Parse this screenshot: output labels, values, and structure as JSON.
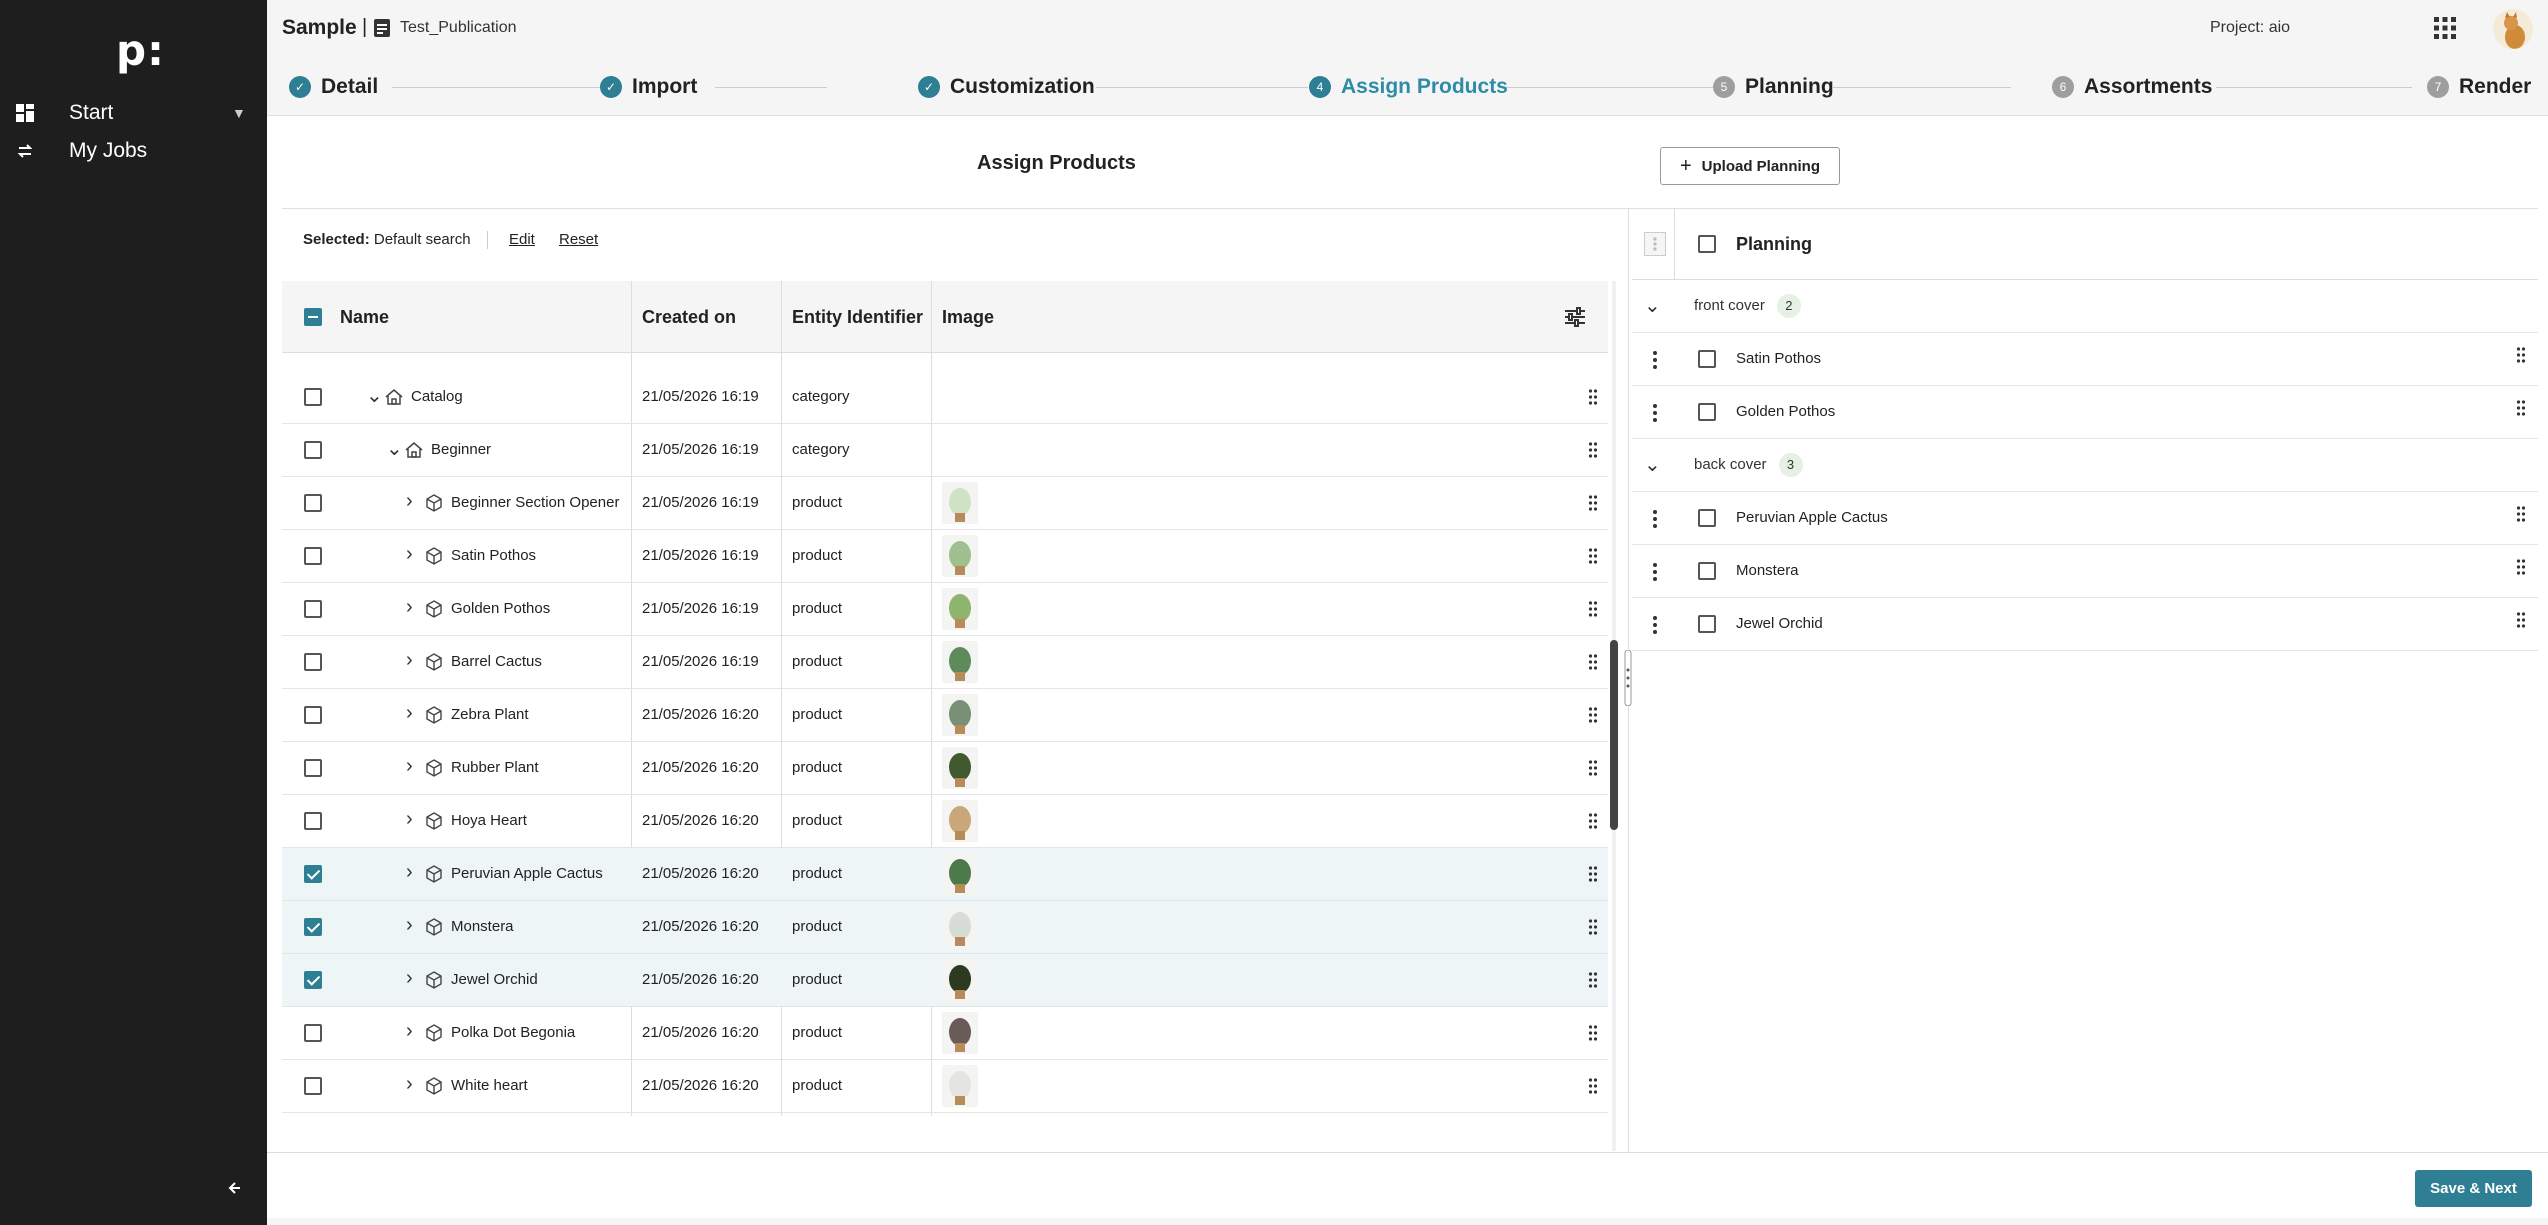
{
  "sidebar": {
    "logo": "p:",
    "items": [
      {
        "label": "Start",
        "icon": "dashboard-icon"
      },
      {
        "label": "My Jobs",
        "icon": "jobs-icon"
      }
    ]
  },
  "header": {
    "title": "Sample",
    "separator": "|",
    "publication": "Test_Publication",
    "project": "Project: aio"
  },
  "stepper": [
    {
      "num": "1",
      "label": "Detail",
      "status": "done"
    },
    {
      "num": "2",
      "label": "Import",
      "status": "done"
    },
    {
      "num": "3",
      "label": "Customization",
      "status": "done"
    },
    {
      "num": "4",
      "label": "Assign Products",
      "status": "active"
    },
    {
      "num": "5",
      "label": "Planning",
      "status": "todo"
    },
    {
      "num": "6",
      "label": "Assortments",
      "status": "todo"
    },
    {
      "num": "7",
      "label": "Render",
      "status": "todo"
    }
  ],
  "main": {
    "heading": "Assign Products",
    "upload_label": "Upload Planning",
    "selected_label": "Selected:",
    "selected_value": "Default search",
    "edit_label": "Edit",
    "reset_label": "Reset"
  },
  "grid": {
    "columns": [
      "Name",
      "Created on",
      "Entity Identifier",
      "Image"
    ],
    "rows": [
      {
        "name": "Catalog",
        "date": "21/05/2026 16:19",
        "entity": "category",
        "level": 0,
        "type": "category",
        "checked": false,
        "expanded": true,
        "img": ""
      },
      {
        "name": "Beginner",
        "date": "21/05/2026 16:19",
        "entity": "category",
        "level": 1,
        "type": "category",
        "checked": false,
        "expanded": true,
        "img": ""
      },
      {
        "name": "Beginner Section Opener",
        "date": "21/05/2026 16:19",
        "entity": "product",
        "level": 2,
        "type": "product",
        "checked": false,
        "expanded": false,
        "img": "#cfe3c4"
      },
      {
        "name": "Satin Pothos",
        "date": "21/05/2026 16:19",
        "entity": "product",
        "level": 2,
        "type": "product",
        "checked": false,
        "expanded": false,
        "img": "#9fbf8f"
      },
      {
        "name": "Golden Pothos",
        "date": "21/05/2026 16:19",
        "entity": "product",
        "level": 2,
        "type": "product",
        "checked": false,
        "expanded": false,
        "img": "#8fb46e"
      },
      {
        "name": "Barrel Cactus",
        "date": "21/05/2026 16:19",
        "entity": "product",
        "level": 2,
        "type": "product",
        "checked": false,
        "expanded": false,
        "img": "#5f8a5a"
      },
      {
        "name": "Zebra Plant",
        "date": "21/05/2026 16:20",
        "entity": "product",
        "level": 2,
        "type": "product",
        "checked": false,
        "expanded": false,
        "img": "#7a8f78"
      },
      {
        "name": "Rubber Plant",
        "date": "21/05/2026 16:20",
        "entity": "product",
        "level": 2,
        "type": "product",
        "checked": false,
        "expanded": false,
        "img": "#3f5a2f"
      },
      {
        "name": "Hoya Heart",
        "date": "21/05/2026 16:20",
        "entity": "product",
        "level": 2,
        "type": "product",
        "checked": false,
        "expanded": false,
        "img": "#c9a77a"
      },
      {
        "name": "Peruvian Apple Cactus",
        "date": "21/05/2026 16:20",
        "entity": "product",
        "level": 2,
        "type": "product",
        "checked": true,
        "expanded": false,
        "img": "#4d7a4a"
      },
      {
        "name": "Monstera",
        "date": "21/05/2026 16:20",
        "entity": "product",
        "level": 2,
        "type": "product",
        "checked": true,
        "expanded": false,
        "img": "#d7ddd5"
      },
      {
        "name": "Jewel Orchid",
        "date": "21/05/2026 16:20",
        "entity": "product",
        "level": 2,
        "type": "product",
        "checked": true,
        "expanded": false,
        "img": "#2d3a22"
      },
      {
        "name": "Polka Dot Begonia",
        "date": "21/05/2026 16:20",
        "entity": "product",
        "level": 2,
        "type": "product",
        "checked": false,
        "expanded": false,
        "img": "#6a5a5a"
      },
      {
        "name": "White heart",
        "date": "21/05/2026 16:20",
        "entity": "product",
        "level": 2,
        "type": "product",
        "checked": false,
        "expanded": false,
        "img": "#e4e4e0"
      }
    ]
  },
  "planning": {
    "title": "Planning",
    "groups": [
      {
        "label": "front cover",
        "count": "2",
        "items": [
          "Satin Pothos",
          "Golden Pothos"
        ]
      },
      {
        "label": "back cover",
        "count": "3",
        "items": [
          "Peruvian Apple Cactus",
          "Monstera",
          "Jewel Orchid"
        ]
      }
    ]
  },
  "footer": {
    "save_next": "Save & Next"
  },
  "colors": {
    "accent": "#2e7f93",
    "active_step": "#2e8ca6",
    "sidebar": "#1e1e1e"
  }
}
